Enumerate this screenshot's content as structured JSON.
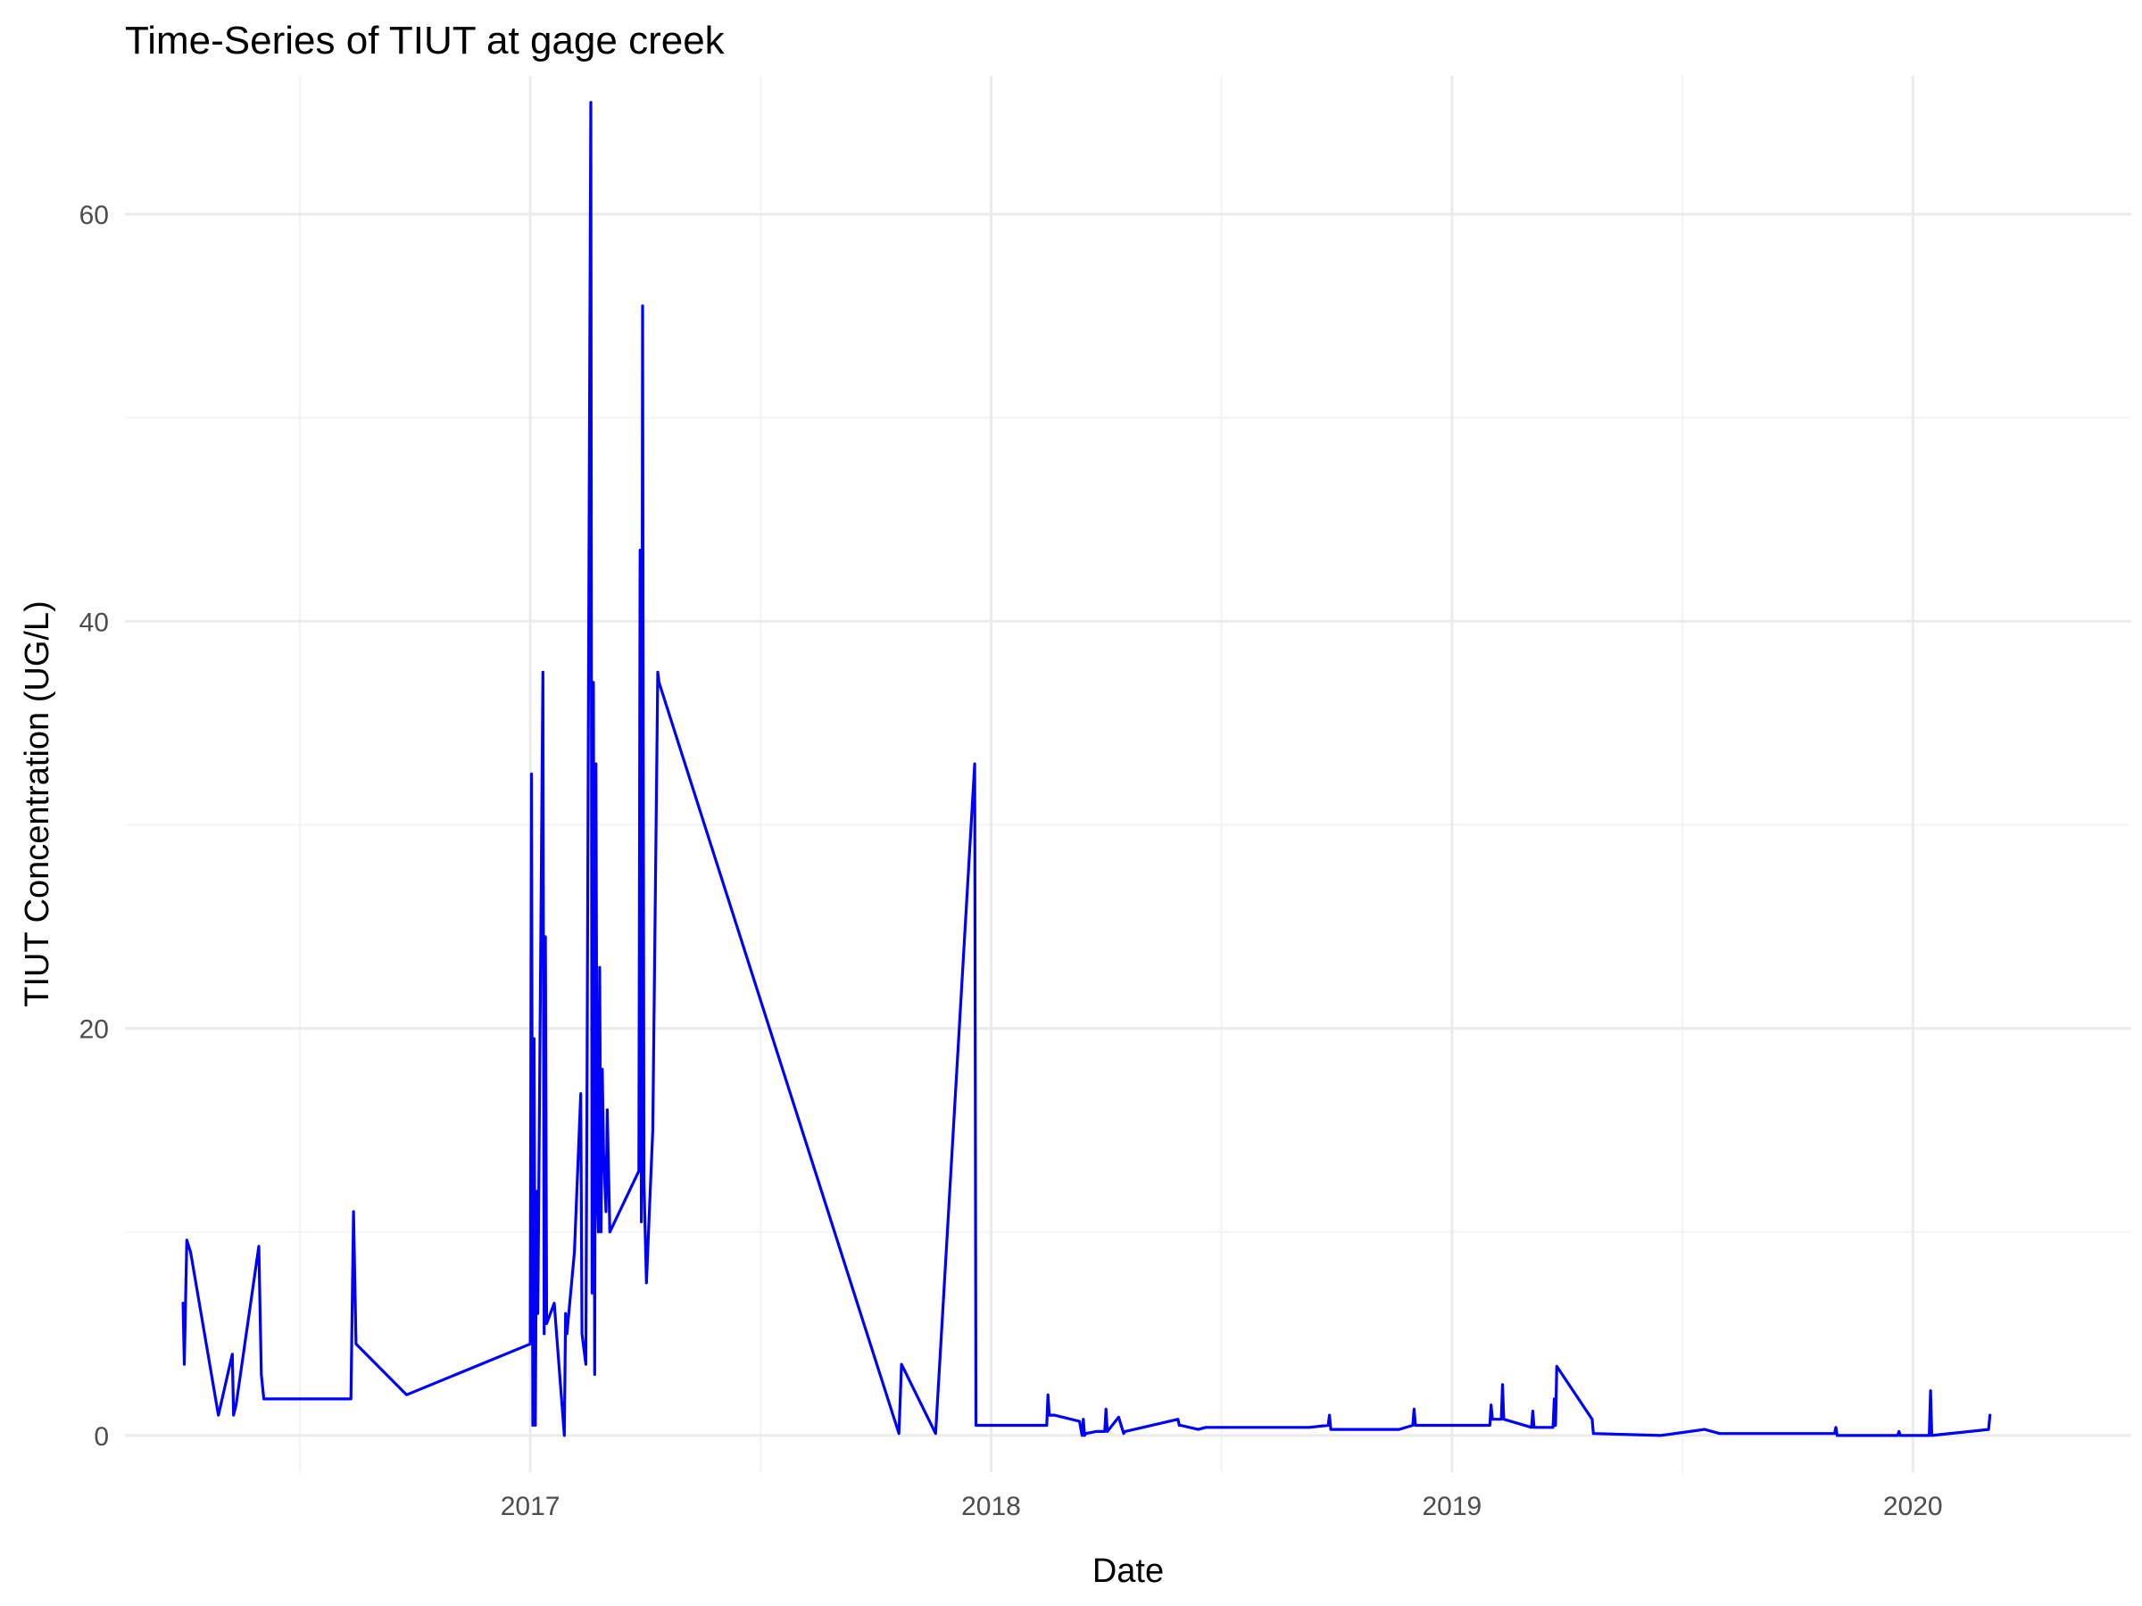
{
  "chart_data": {
    "type": "line",
    "title": "Time-Series of TIUT at gage creek",
    "xlabel": "Date",
    "ylabel": "TIUT Concentration (UG/L)",
    "x_ticks": [
      "2017-01-01",
      "2018-01-01",
      "2019-01-01",
      "2020-01-01"
    ],
    "x_tick_labels": [
      "2017",
      "2018",
      "2019",
      "2020"
    ],
    "y_ticks": [
      0,
      20,
      40,
      60
    ],
    "xlim": [
      "2016-02-15",
      "2020-06-22"
    ],
    "ylim": [
      -1.8,
      66.8
    ],
    "grid": true,
    "legend": "none",
    "line_color": "#0000ff",
    "series": [
      {
        "x": [
          "2016-04-01",
          "2016-04-02",
          "2016-04-04",
          "2016-04-07",
          "2016-04-29",
          "2016-05-10",
          "2016-05-11",
          "2016-05-13",
          "2016-05-31",
          "2016-06-02",
          "2016-06-04",
          "2016-08-12",
          "2016-08-14",
          "2016-08-16",
          "2016-09-25",
          "2017-01-01",
          "2017-01-02",
          "2017-01-03",
          "2017-01-04",
          "2017-01-05",
          "2017-01-06",
          "2017-01-07",
          "2017-01-11",
          "2017-01-12",
          "2017-01-13",
          "2017-01-14",
          "2017-01-20",
          "2017-01-28",
          "2017-01-29",
          "2017-01-30",
          "2017-02-05",
          "2017-02-10",
          "2017-02-11",
          "2017-02-14",
          "2017-02-15",
          "2017-02-17",
          "2017-02-18",
          "2017-02-19",
          "2017-02-20",
          "2017-02-21",
          "2017-02-22",
          "2017-02-23",
          "2017-02-24",
          "2017-02-25",
          "2017-02-26",
          "2017-02-27",
          "2017-02-28",
          "2017-03-01",
          "2017-03-02",
          "2017-03-03",
          "2017-03-05",
          "2017-03-28",
          "2017-03-29",
          "2017-03-30",
          "2017-03-31",
          "2017-04-01",
          "2017-04-02",
          "2017-04-03",
          "2017-04-05",
          "2017-04-08",
          "2017-04-12",
          "2017-04-13",
          "2017-10-20",
          "2017-10-22",
          "2017-11-18",
          "2017-12-19",
          "2017-12-20",
          "2018-01-20",
          "2018-02-14",
          "2018-02-15",
          "2018-02-16",
          "2018-02-20",
          "2018-03-12",
          "2018-03-14",
          "2018-03-15",
          "2018-03-16",
          "2018-03-17",
          "2018-03-25",
          "2018-04-01",
          "2018-04-02",
          "2018-04-03",
          "2018-04-12",
          "2018-04-16",
          "2018-04-17",
          "2018-05-29",
          "2018-05-30",
          "2018-05-31",
          "2018-06-14",
          "2018-06-20",
          "2018-09-10",
          "2018-09-25",
          "2018-09-26",
          "2018-09-27",
          "2018-11-20",
          "2018-12-01",
          "2018-12-02",
          "2018-12-03",
          "2019-01-31",
          "2019-02-01",
          "2019-02-02",
          "2019-02-09",
          "2019-02-10",
          "2019-02-11",
          "2019-03-05",
          "2019-03-06",
          "2019-03-07",
          "2019-03-22",
          "2019-03-23",
          "2019-03-24",
          "2019-03-25",
          "2019-04-22",
          "2019-04-23",
          "2019-06-15",
          "2019-07-20",
          "2019-08-01",
          "2019-10-31",
          "2019-11-01",
          "2019-11-02",
          "2019-12-20",
          "2019-12-21",
          "2019-12-22",
          "2020-01-14",
          "2020-01-15",
          "2020-01-16",
          "2020-03-01",
          "2020-03-02"
        ],
        "values": [
          6.5,
          3.5,
          9.6,
          9.0,
          1.0,
          4.0,
          1.0,
          1.5,
          9.3,
          3.0,
          1.8,
          1.8,
          11.0,
          4.5,
          2.0,
          4.5,
          32.5,
          0.5,
          19.5,
          0.5,
          12.0,
          6.0,
          37.5,
          5.0,
          24.5,
          5.5,
          6.5,
          0.0,
          6.0,
          5.0,
          9.0,
          16.8,
          5.0,
          3.5,
          18.0,
          51.0,
          65.5,
          7.0,
          37.0,
          3.0,
          33.0,
          12.0,
          10.0,
          23.0,
          10.0,
          18.0,
          14.0,
          12.5,
          11.0,
          16.0,
          10.0,
          13.0,
          43.5,
          10.5,
          55.5,
          12.5,
          10.0,
          7.5,
          10.5,
          15.0,
          37.5,
          37.0,
          0.1,
          3.5,
          0.1,
          33.0,
          0.5,
          0.5,
          0.5,
          2.0,
          1.0,
          1.0,
          0.7,
          0.0,
          0.8,
          0.0,
          0.1,
          0.2,
          0.2,
          1.3,
          0.2,
          0.9,
          0.1,
          0.2,
          0.8,
          0.5,
          0.5,
          0.3,
          0.4,
          0.4,
          0.5,
          1.0,
          0.3,
          0.3,
          0.5,
          1.3,
          0.5,
          0.5,
          1.5,
          0.8,
          0.8,
          2.5,
          0.8,
          0.4,
          1.2,
          0.4,
          0.4,
          1.8,
          0.5,
          3.4,
          0.8,
          0.1,
          0.0,
          0.3,
          0.1,
          0.1,
          0.4,
          0.0,
          0.0,
          0.2,
          0.0,
          0.0,
          2.2,
          0.0,
          0.3,
          1.0
        ]
      }
    ]
  }
}
